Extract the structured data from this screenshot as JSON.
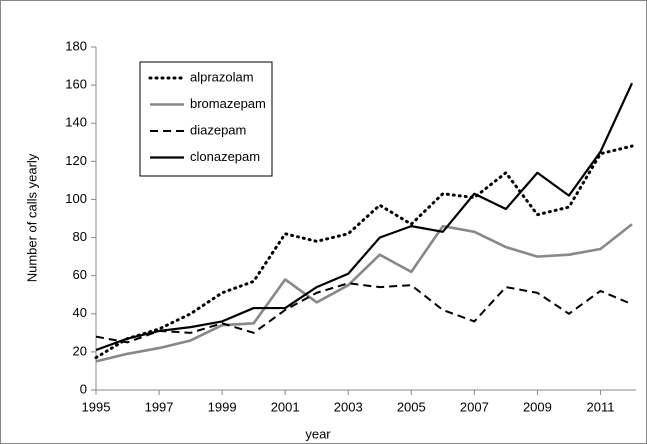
{
  "chart_data": {
    "type": "line",
    "x_label": "year",
    "y_label": "Number of calls yearly",
    "x": [
      1995,
      1996,
      1997,
      1998,
      1999,
      2000,
      2001,
      2002,
      2003,
      2004,
      2005,
      2006,
      2007,
      2008,
      2009,
      2010,
      2011,
      2012
    ],
    "series": [
      {
        "name": "alprazolam",
        "color": "#000000",
        "dash": "dotted",
        "values": [
          17,
          27,
          32,
          40,
          51,
          57,
          82,
          78,
          82,
          97,
          87,
          103,
          101,
          114,
          92,
          96,
          124,
          128
        ]
      },
      {
        "name": "bromazepam",
        "color": "#888888",
        "dash": "solid",
        "values": [
          15,
          19,
          22,
          26,
          34,
          35,
          58,
          46,
          55,
          71,
          62,
          86,
          83,
          75,
          70,
          71,
          74,
          87
        ]
      },
      {
        "name": "diazepam",
        "color": "#000000",
        "dash": "dashed",
        "values": [
          28,
          25,
          31,
          30,
          35,
          30,
          42,
          51,
          56,
          54,
          55,
          42,
          36,
          54,
          51,
          40,
          52,
          45
        ]
      },
      {
        "name": "clonazepam",
        "color": "#000000",
        "dash": "solid",
        "values": [
          21,
          27,
          31,
          33,
          36,
          43,
          43,
          54,
          61,
          80,
          86,
          83,
          103,
          95,
          114,
          102,
          125,
          161
        ]
      }
    ],
    "xlim": [
      1995,
      2012
    ],
    "xticks": [
      1995,
      1997,
      1999,
      2001,
      2003,
      2005,
      2007,
      2009,
      2011
    ],
    "ylim": [
      0,
      180
    ],
    "yticks": [
      0,
      20,
      40,
      60,
      80,
      100,
      120,
      140,
      160,
      180
    ],
    "grid": false,
    "legend": "upper left"
  }
}
